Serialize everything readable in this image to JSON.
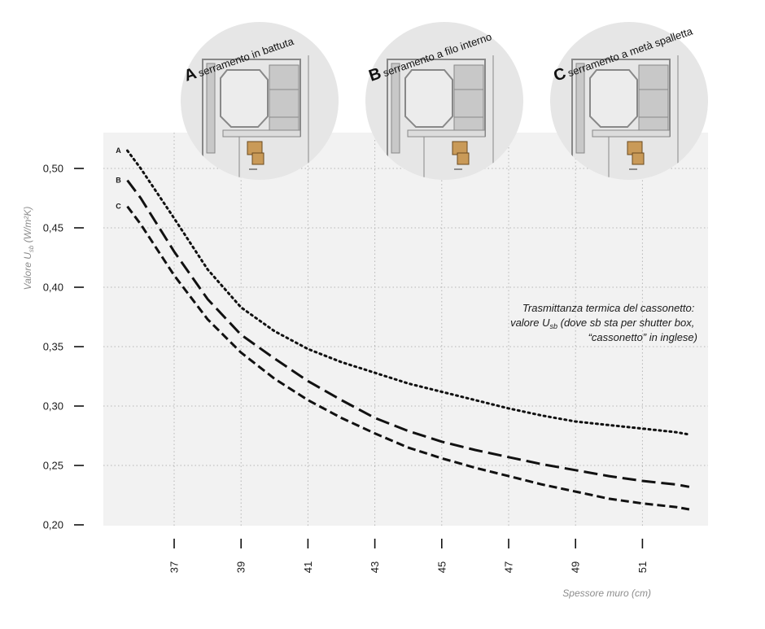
{
  "chart_data": {
    "type": "line",
    "title": "",
    "xlabel": "Spessore muro (cm)",
    "ylabel_main": "Valore U",
    "ylabel_sub": "sb",
    "ylabel_unit": " (W/m²K)",
    "xlim": [
      35,
      53
    ],
    "ylim": [
      0.2,
      0.53
    ],
    "x_ticks": [
      37,
      39,
      41,
      43,
      45,
      47,
      49,
      51
    ],
    "y_ticks": [
      0.2,
      0.25,
      0.3,
      0.35,
      0.4,
      0.45,
      0.5
    ],
    "y_tick_labels": [
      "0,20",
      "0,25",
      "0,30",
      "0,35",
      "0,40",
      "0,45",
      "0,50"
    ],
    "grid": true,
    "series": [
      {
        "name": "A",
        "style": "dotted",
        "x": [
          35.6,
          36,
          37,
          38,
          39,
          40,
          41,
          42,
          43,
          44,
          45,
          46,
          47,
          48,
          49,
          50,
          51,
          52,
          52.4
        ],
        "values": [
          0.515,
          0.5,
          0.458,
          0.415,
          0.383,
          0.363,
          0.348,
          0.337,
          0.328,
          0.319,
          0.312,
          0.305,
          0.298,
          0.292,
          0.287,
          0.284,
          0.281,
          0.278,
          0.276
        ]
      },
      {
        "name": "B",
        "style": "long-dashed",
        "x": [
          35.6,
          36,
          37,
          38,
          39,
          40,
          41,
          42,
          43,
          44,
          45,
          46,
          47,
          48,
          49,
          50,
          51,
          52,
          52.4
        ],
        "values": [
          0.49,
          0.475,
          0.43,
          0.39,
          0.36,
          0.34,
          0.321,
          0.305,
          0.29,
          0.279,
          0.27,
          0.263,
          0.257,
          0.251,
          0.246,
          0.241,
          0.237,
          0.234,
          0.232
        ]
      },
      {
        "name": "C",
        "style": "dashed",
        "x": [
          35.6,
          36,
          37,
          38,
          39,
          40,
          41,
          42,
          43,
          44,
          45,
          46,
          47,
          48,
          49,
          50,
          51,
          52,
          52.4
        ],
        "values": [
          0.468,
          0.453,
          0.41,
          0.373,
          0.345,
          0.323,
          0.305,
          0.29,
          0.277,
          0.265,
          0.256,
          0.248,
          0.241,
          0.234,
          0.228,
          0.222,
          0.218,
          0.215,
          0.213
        ]
      }
    ],
    "annotation": {
      "line1": "Trasmittanza termica del cassonetto:",
      "line2_pre": "valore U",
      "line2_sub": "sb",
      "line2_post": " (dove sb sta per shutter box,",
      "line3": "“cassonetto” in inglese)"
    },
    "variants": [
      {
        "letter": "A",
        "title": "serramento in battuta"
      },
      {
        "letter": "B",
        "title": "serramento a filo interno"
      },
      {
        "letter": "C",
        "title": "serramento a metà spalletta"
      }
    ],
    "colors": {
      "plot_bg": "#f2f2f2",
      "grid": "#b5b5b5",
      "line": "#111111",
      "circle_bg": "#e6e6e6",
      "profile": "#888888",
      "fill_grey": "#c8c8c8",
      "wood": "#c99a58"
    }
  }
}
